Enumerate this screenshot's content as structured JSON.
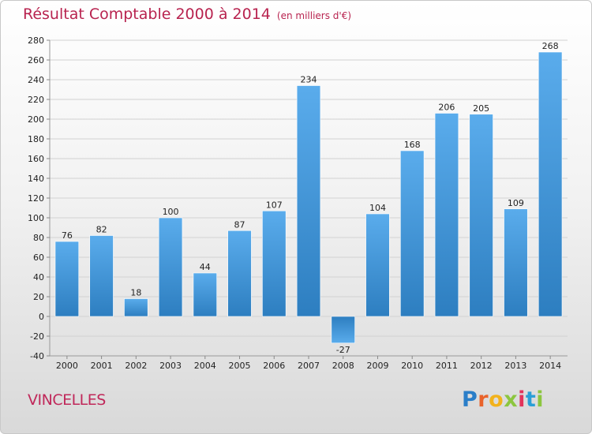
{
  "header": {
    "title": "Résultat Comptable 2000 à 2014",
    "subtitle": "(en milliers d'€)"
  },
  "footer": {
    "commune": "VINCELLES",
    "logo_letters": [
      {
        "ch": "P",
        "color": "#2a7ec8"
      },
      {
        "ch": "r",
        "color": "#e9632b"
      },
      {
        "ch": "o",
        "color": "#f2b21c"
      },
      {
        "ch": "x",
        "color": "#8cc63f"
      },
      {
        "ch": "i",
        "color": "#e2345b"
      },
      {
        "ch": "t",
        "color": "#2a9fd6"
      },
      {
        "ch": "i",
        "color": "#8cc63f"
      }
    ]
  },
  "colors": {
    "bar_light": "#5aacec",
    "bar_dark": "#2d7ec0",
    "title": "#b8234f"
  },
  "chart_data": {
    "type": "bar",
    "title": "Résultat Comptable 2000 à 2014",
    "subtitle": "(en milliers d'€)",
    "categories": [
      "2000",
      "2001",
      "2002",
      "2003",
      "2004",
      "2005",
      "2006",
      "2007",
      "2008",
      "2009",
      "2010",
      "2011",
      "2012",
      "2013",
      "2014"
    ],
    "values": [
      76,
      82,
      18,
      100,
      44,
      87,
      107,
      234,
      -27,
      104,
      168,
      206,
      205,
      109,
      268
    ],
    "ylim": [
      -40,
      280
    ],
    "yticks": [
      -40,
      -20,
      0,
      20,
      40,
      60,
      80,
      100,
      120,
      140,
      160,
      180,
      200,
      220,
      240,
      260,
      280
    ],
    "grid": true,
    "legend": "none"
  }
}
